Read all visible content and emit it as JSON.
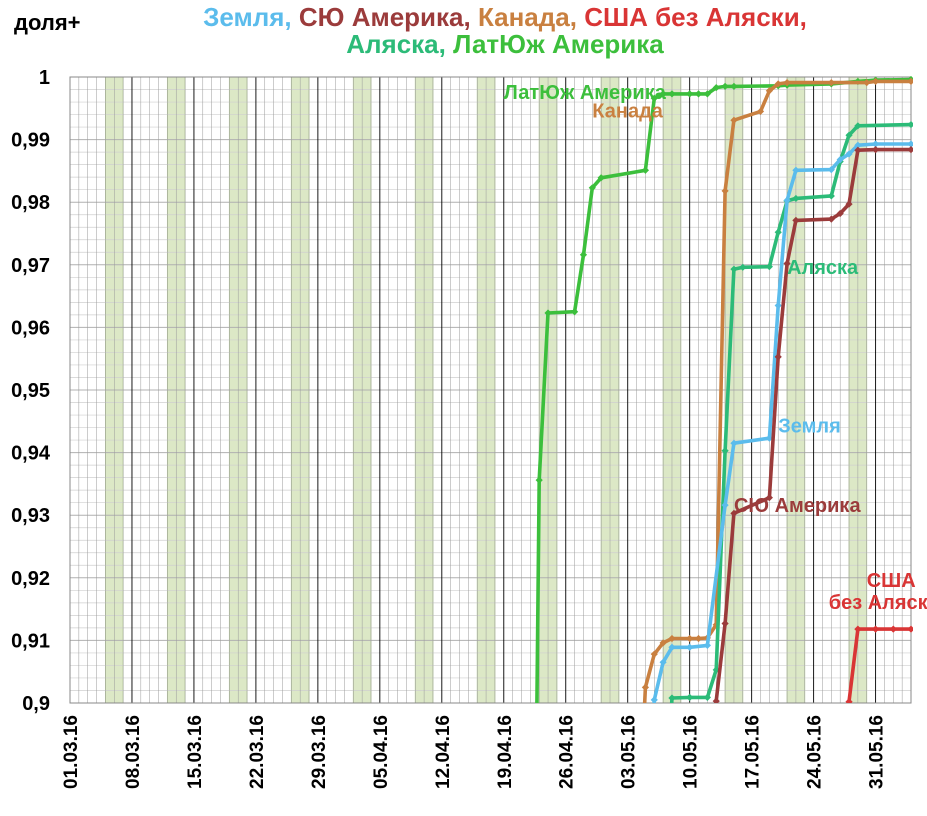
{
  "chart_data": {
    "type": "line",
    "ylabel": "доля+",
    "title_parts": [
      {
        "text": "Земля,",
        "color": "#5bbcec"
      },
      {
        "text": "СЮ Америка,",
        "color": "#9b3b3b"
      },
      {
        "text": "Канада,",
        "color": "#c98040"
      },
      {
        "text": "США без Аляски,",
        "color": "#d93535"
      },
      {
        "text": "Аляска,",
        "color": "#2cbb78"
      },
      {
        "text": "ЛатЮж Америка",
        "color": "#3cbf3c"
      }
    ],
    "ylim": [
      0.9,
      1.0
    ],
    "yticks": [
      "0,9",
      "0,91",
      "0,92",
      "0,93",
      "0,94",
      "0,95",
      "0,96",
      "0,97",
      "0,98",
      "0,99",
      "1"
    ],
    "xlim": [
      "2016-03-01",
      "2016-06-04"
    ],
    "xticks": [
      "01.03.16",
      "08.03.16",
      "15.03.16",
      "22.03.16",
      "29.03.16",
      "05.04.16",
      "12.04.16",
      "19.04.16",
      "26.04.16",
      "03.05.16",
      "10.05.16",
      "17.05.16",
      "24.05.16",
      "31.05.16"
    ],
    "grid": true,
    "weekend_shading": true,
    "series": [
      {
        "name": "ЛатЮж Америка",
        "color": "#3cbf3c",
        "label_date": "2016-04-19",
        "label_value": 0.9965,
        "x": [
          "2016-04-23",
          "2016-04-24",
          "2016-04-27",
          "2016-04-28",
          "2016-04-29",
          "2016-04-30",
          "2016-05-05",
          "2016-05-06",
          "2016-05-07",
          "2016-05-08",
          "2016-05-10",
          "2016-05-11",
          "2016-05-12",
          "2016-05-13",
          "2016-05-14",
          "2016-05-15",
          "2016-05-20",
          "2016-05-21",
          "2016-05-26",
          "2016-05-29",
          "2016-05-31",
          "2016-06-04"
        ],
        "y": [
          0.9356,
          0.9623,
          0.9625,
          0.9716,
          0.9823,
          0.9839,
          0.9851,
          0.9966,
          0.9973,
          0.9973,
          0.9973,
          0.9973,
          0.9973,
          0.9983,
          0.9985,
          0.9985,
          0.9986,
          0.9987,
          0.9989,
          0.9993,
          0.9995,
          0.9996
        ]
      },
      {
        "name": "Канада",
        "color": "#c98040",
        "label_date": "2016-04-29",
        "label_value": 0.9935,
        "x": [
          "2016-05-05",
          "2016-05-06",
          "2016-05-07",
          "2016-05-08",
          "2016-05-10",
          "2016-05-11",
          "2016-05-12",
          "2016-05-13",
          "2016-05-14",
          "2016-05-15",
          "2016-05-18",
          "2016-05-19",
          "2016-05-20",
          "2016-05-21",
          "2016-05-26",
          "2016-05-30",
          "2016-05-31",
          "2016-06-04"
        ],
        "y": [
          0.9025,
          0.9078,
          0.9096,
          0.9103,
          0.9103,
          0.9103,
          0.9104,
          0.9125,
          0.9818,
          0.9931,
          0.9945,
          0.9978,
          0.9989,
          0.9991,
          0.9991,
          0.9991,
          0.9993,
          0.9993
        ]
      },
      {
        "name": "Аляска",
        "color": "#2cbb78",
        "label_date": "2016-05-21",
        "label_value": 0.9685,
        "x": [
          "2016-05-08",
          "2016-05-10",
          "2016-05-12",
          "2016-05-13",
          "2016-05-14",
          "2016-05-15",
          "2016-05-16",
          "2016-05-19",
          "2016-05-20",
          "2016-05-21",
          "2016-05-22",
          "2016-05-26",
          "2016-05-27",
          "2016-05-28",
          "2016-05-29",
          "2016-06-04"
        ],
        "y": [
          0.9008,
          0.9009,
          0.9009,
          0.9053,
          0.9403,
          0.9693,
          0.9696,
          0.9697,
          0.9752,
          0.9802,
          0.9806,
          0.981,
          0.9865,
          0.9907,
          0.9922,
          0.9924
        ]
      },
      {
        "name": "Земля",
        "color": "#5bbcec",
        "label_date": "2016-05-20",
        "label_value": 0.9432,
        "x": [
          "2016-05-06",
          "2016-05-07",
          "2016-05-08",
          "2016-05-10",
          "2016-05-12",
          "2016-05-14",
          "2016-05-15",
          "2016-05-19",
          "2016-05-20",
          "2016-05-21",
          "2016-05-22",
          "2016-05-26",
          "2016-05-27",
          "2016-05-28",
          "2016-05-29",
          "2016-05-31",
          "2016-06-04"
        ],
        "y": [
          0.9005,
          0.9065,
          0.9089,
          0.9089,
          0.9092,
          0.9316,
          0.9415,
          0.9423,
          0.9635,
          0.9803,
          0.9851,
          0.9852,
          0.9868,
          0.9877,
          0.9891,
          0.9893,
          0.9893
        ]
      },
      {
        "name": "СЮ Америка",
        "color": "#9b3b3b",
        "label_date": "2016-05-15",
        "label_value": 0.9305,
        "x": [
          "2016-05-13",
          "2016-05-14",
          "2016-05-15",
          "2016-05-19",
          "2016-05-20",
          "2016-05-21",
          "2016-05-22",
          "2016-05-26",
          "2016-05-27",
          "2016-05-28",
          "2016-05-29",
          "2016-05-31",
          "2016-06-04"
        ],
        "y": [
          0.9003,
          0.9127,
          0.9303,
          0.9328,
          0.9553,
          0.9702,
          0.9771,
          0.9773,
          0.9782,
          0.9797,
          0.9883,
          0.9884,
          0.9884
        ]
      },
      {
        "name": "США без Аляски",
        "color": "#d93535",
        "label_lines": [
          "США",
          "без Аляски"
        ],
        "label_date": "2016-05-30",
        "label_value": 0.9185,
        "x": [
          "2016-05-28",
          "2016-05-29",
          "2016-05-31",
          "2016-06-02",
          "2016-06-04"
        ],
        "y": [
          0.9002,
          0.9118,
          0.9118,
          0.9118,
          0.9118
        ]
      }
    ]
  }
}
